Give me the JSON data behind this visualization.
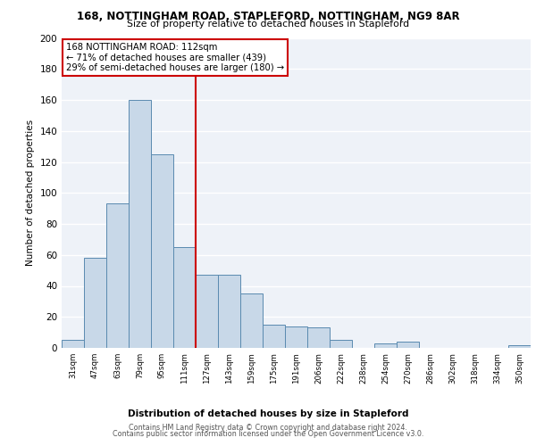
{
  "title1": "168, NOTTINGHAM ROAD, STAPLEFORD, NOTTINGHAM, NG9 8AR",
  "title2": "Size of property relative to detached houses in Stapleford",
  "xlabel": "Distribution of detached houses by size in Stapleford",
  "ylabel": "Number of detached properties",
  "bar_color": "#c8d8e8",
  "bar_edge_color": "#5a8ab0",
  "background_color": "#eef2f8",
  "grid_color": "#ffffff",
  "categories": [
    "31sqm",
    "47sqm",
    "63sqm",
    "79sqm",
    "95sqm",
    "111sqm",
    "127sqm",
    "143sqm",
    "159sqm",
    "175sqm",
    "191sqm",
    "206sqm",
    "222sqm",
    "238sqm",
    "254sqm",
    "270sqm",
    "286sqm",
    "302sqm",
    "318sqm",
    "334sqm",
    "350sqm"
  ],
  "values": [
    5,
    58,
    93,
    160,
    125,
    65,
    47,
    47,
    35,
    15,
    14,
    13,
    5,
    0,
    3,
    4,
    0,
    0,
    0,
    0,
    2
  ],
  "ylim": [
    0,
    200
  ],
  "yticks": [
    0,
    20,
    40,
    60,
    80,
    100,
    120,
    140,
    160,
    180,
    200
  ],
  "vline_x": 5.5,
  "vline_color": "#cc0000",
  "annotation_text": "168 NOTTINGHAM ROAD: 112sqm\n← 71% of detached houses are smaller (439)\n29% of semi-detached houses are larger (180) →",
  "annotation_box_color": "#ffffff",
  "annotation_box_edge": "#cc0000",
  "footer1": "Contains HM Land Registry data © Crown copyright and database right 2024.",
  "footer2": "Contains public sector information licensed under the Open Government Licence v3.0."
}
